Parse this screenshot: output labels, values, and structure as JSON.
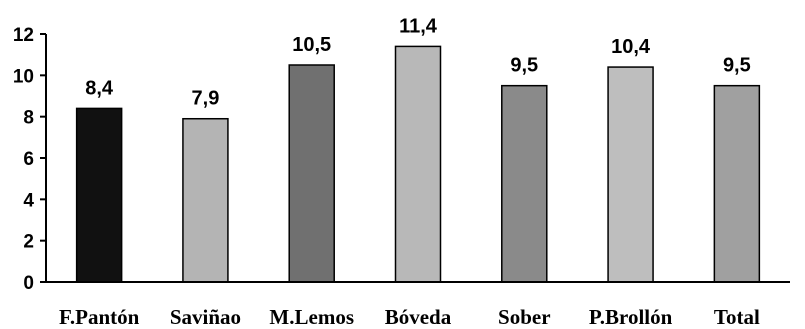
{
  "chart_data": {
    "type": "bar",
    "categories": [
      "F.Pantón",
      "Saviñao",
      "M.Lemos",
      "Bóveda",
      "Sober",
      "P.Brollón",
      "Total"
    ],
    "values": [
      8.4,
      7.9,
      10.5,
      11.4,
      9.5,
      10.4,
      9.5
    ],
    "value_labels": [
      "8,4",
      "7,9",
      "10,5",
      "11,4",
      "9,5",
      "10,4",
      "9,5"
    ],
    "bar_colors": [
      "#111111",
      "#b4b4b4",
      "#707070",
      "#b8b8b8",
      "#8a8a8a",
      "#bebebe",
      "#a0a0a0"
    ],
    "ylim": [
      0,
      12
    ],
    "yticks": [
      0,
      2,
      4,
      6,
      8,
      10,
      12
    ],
    "grid": false,
    "title": "",
    "xlabel": "",
    "ylabel": ""
  }
}
